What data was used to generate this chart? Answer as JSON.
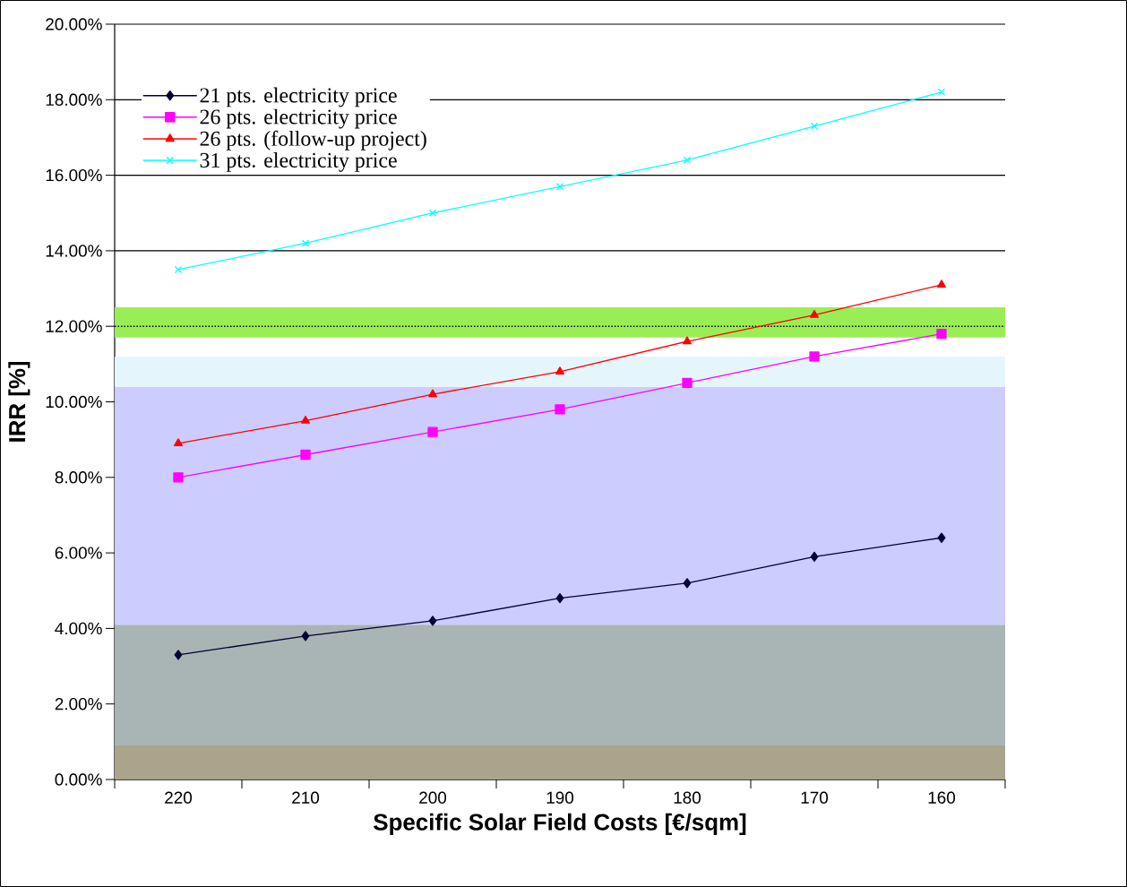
{
  "chart_data": {
    "type": "line",
    "xlabel": "Specific Solar Field Costs  [€/sqm]",
    "ylabel": "IRR [%]",
    "categories": [
      "220",
      "210",
      "200",
      "190",
      "180",
      "170",
      "160"
    ],
    "series": [
      {
        "name": "21 pts. electricity price",
        "color": "#000033",
        "marker": "diamond",
        "values": [
          3.3,
          3.8,
          4.2,
          4.8,
          5.2,
          5.9,
          6.4
        ]
      },
      {
        "name": "26 pts. electricity price",
        "color": "#ff00ff",
        "marker": "square",
        "values": [
          8.0,
          8.6,
          9.2,
          9.8,
          10.5,
          11.2,
          11.8
        ]
      },
      {
        "name": "26 pts. (follow-up project)",
        "color": "#ff0000",
        "marker": "triangle",
        "values": [
          8.9,
          9.5,
          10.2,
          10.8,
          11.6,
          12.3,
          13.1
        ]
      },
      {
        "name": "31 pts. electricity price",
        "color": "#00ffff",
        "marker": "cross",
        "values": [
          13.5,
          14.2,
          15.0,
          15.7,
          16.4,
          17.3,
          18.2
        ]
      }
    ],
    "ylim": [
      0,
      20
    ],
    "yticks": [
      {
        "value": 0,
        "label": "0.00%"
      },
      {
        "value": 2,
        "label": "2.00%"
      },
      {
        "value": 4,
        "label": "4.00%"
      },
      {
        "value": 6,
        "label": "6.00%"
      },
      {
        "value": 8,
        "label": "8.00%"
      },
      {
        "value": 10,
        "label": "10.00%"
      },
      {
        "value": 12,
        "label": "12.00%"
      },
      {
        "value": 14,
        "label": "14.00%"
      },
      {
        "value": 16,
        "label": "16.00%"
      },
      {
        "value": 18,
        "label": "18.00%"
      },
      {
        "value": 20,
        "label": "20.00%"
      }
    ],
    "bands": [
      {
        "axis": "y",
        "from": 0,
        "to": 0.9,
        "color": "#aaa48c"
      },
      {
        "axis": "y",
        "from": 0.9,
        "to": 4.1,
        "color": "#a9b4b4"
      },
      {
        "axis": "y",
        "from": 4.1,
        "to": 10.4,
        "color": "#ccccff"
      },
      {
        "axis": "y",
        "from": 10.4,
        "to": 11.2,
        "color": "#e4f6fc"
      },
      {
        "axis": "y",
        "from": 11.7,
        "to": 12.5,
        "color": "#99ee55"
      }
    ],
    "ref_lines": [
      {
        "axis": "y",
        "value": 12,
        "color": "#000000",
        "line_style": "dotted"
      }
    ],
    "grid": "y",
    "legend": "top left"
  }
}
